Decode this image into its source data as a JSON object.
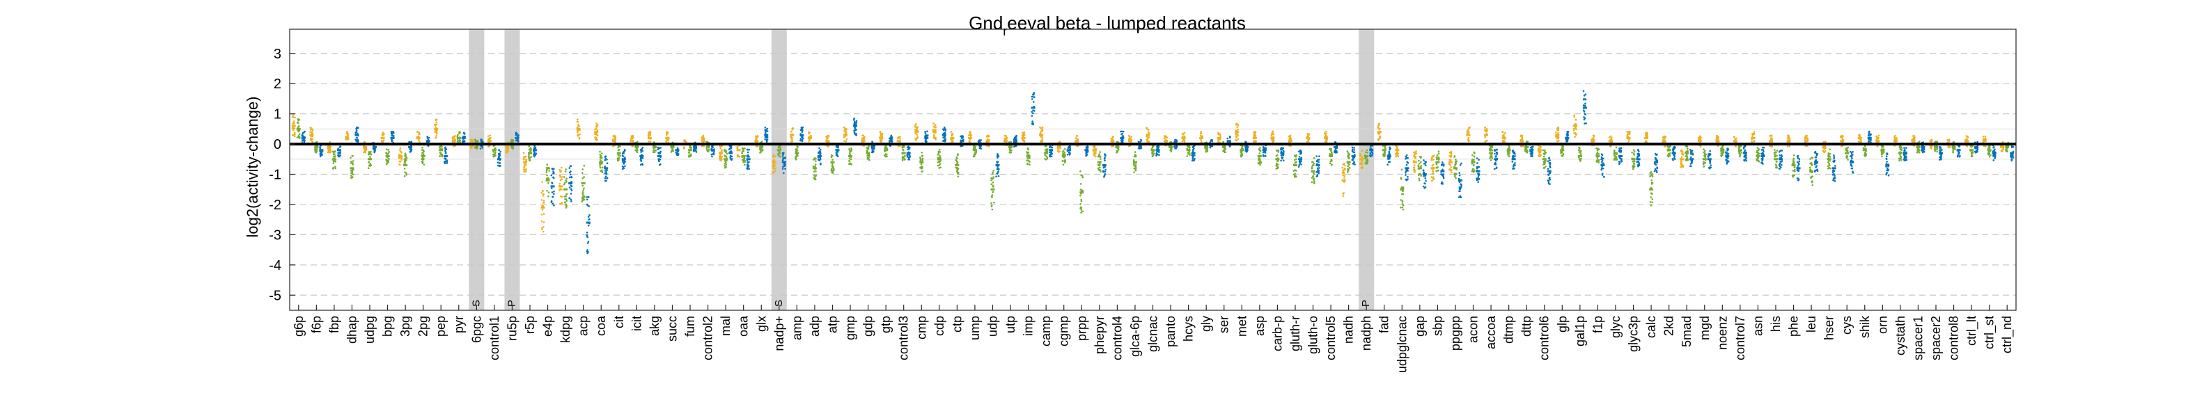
{
  "chart_data": {
    "type": "scatter",
    "title_main": "Gnd",
    "title_sub": "r",
    "title_rest": "eeval beta - lumped reactants",
    "ylabel": "log2(activity-change)",
    "ylim": [
      -5.5,
      3.8
    ],
    "yticks": [
      3,
      2,
      1,
      0,
      -1,
      -2,
      -3,
      -4,
      -5
    ],
    "grid": "dashed horizontal",
    "colors": {
      "orange": "#EDB120",
      "green": "#77AC30",
      "blue": "#0072BD",
      "cyan": "#4DBEEE",
      "highlight": "#d0d0d0",
      "zero_line": "#000000"
    },
    "categories": [
      "g6p",
      "f6p",
      "fbp",
      "dhap",
      "udpg",
      "bpg",
      "3pg",
      "2pg",
      "pep",
      "pyr",
      "6pgc",
      "control1",
      "ru5p",
      "r5p",
      "e4p",
      "kdpg",
      "acp",
      "coa",
      "cit",
      "icit",
      "akg",
      "succ",
      "fum",
      "control2",
      "mal",
      "oaa",
      "glx",
      "nadp+",
      "amp",
      "adp",
      "atp",
      "gmp",
      "gdp",
      "gtp",
      "control3",
      "cmp",
      "cdp",
      "ctp",
      "ump",
      "udp",
      "utp",
      "imp",
      "camp",
      "cgmp",
      "prpp",
      "phepyr",
      "control4",
      "glca-6p",
      "glcnac",
      "panto",
      "hcys",
      "gly",
      "ser",
      "met",
      "asp",
      "carb-p",
      "gluth-r",
      "gluth-o",
      "control5",
      "nadh",
      "nadph",
      "fad",
      "udpglcnac",
      "gap",
      "sbp",
      "ppgpp",
      "acon",
      "accoa",
      "dtmp",
      "dttp",
      "control6",
      "glp",
      "gal1p",
      "f1p",
      "glyc",
      "glyc3p",
      "calc",
      "2kd",
      "5mad",
      "mgd",
      "noenz",
      "control7",
      "asn",
      "his",
      "phe",
      "leu",
      "hser",
      "cys",
      "shik",
      "orn",
      "cystath",
      "spacer1",
      "spacer2",
      "control8",
      "ctrl_lt",
      "ctrl_st",
      "ctrl_nd"
    ],
    "highlights": [
      {
        "category": "6pgc",
        "label": "S"
      },
      {
        "category": "ru5p",
        "label": "P"
      },
      {
        "category": "nadp+",
        "label": "S"
      },
      {
        "category": "nadph",
        "label": "P"
      }
    ],
    "series": [
      {
        "color": "orange",
        "values": [
          0.6,
          0.3,
          -0.1,
          0.2,
          -0.1,
          0.2,
          -0.4,
          0.2,
          0.5,
          0.1,
          0.0,
          0.1,
          -0.1,
          -0.6,
          -2.1,
          -1.4,
          0.5,
          0.4,
          0.1,
          0.1,
          0.2,
          0.2,
          0.0,
          0.1,
          -0.3,
          -0.2,
          0.1,
          -0.6,
          0.3,
          0.2,
          0.1,
          0.3,
          0.1,
          0.2,
          0.1,
          0.4,
          0.4,
          0.2,
          0.2,
          0.1,
          0.1,
          0.2,
          0.3,
          -0.1,
          0.1,
          -0.2,
          0.1,
          0.1,
          0.3,
          0.1,
          0.2,
          0.2,
          0.2,
          0.4,
          0.2,
          0.2,
          0.1,
          0.2,
          0.2,
          -1.2,
          -0.5,
          0.4,
          -0.2,
          -0.6,
          -0.8,
          -0.6,
          0.3,
          0.3,
          0.2,
          0.1,
          -0.2,
          0.3,
          0.6,
          0.1,
          0.1,
          0.2,
          0.2,
          0.1,
          -0.5,
          0.1,
          0.1,
          0.1,
          0.2,
          0.1,
          0.1,
          0.1,
          -0.1,
          0.1,
          0.2,
          0.1,
          0.1,
          0.1,
          0.0,
          0.0,
          0.1,
          0.1,
          -0.1
        ]
      },
      {
        "color": "green",
        "values": [
          0.5,
          -0.1,
          -0.5,
          -0.8,
          -0.5,
          -0.4,
          -0.7,
          -0.4,
          -0.2,
          0.2,
          0.0,
          -0.2,
          0.0,
          -0.3,
          -1.2,
          -1.5,
          -1.3,
          -0.6,
          -0.3,
          -0.1,
          -0.1,
          -0.1,
          -0.2,
          -0.1,
          -0.5,
          -0.4,
          -0.1,
          -0.2,
          -0.3,
          -0.8,
          -0.6,
          -0.4,
          -0.3,
          -0.2,
          -0.3,
          -0.6,
          -0.5,
          -0.7,
          -0.2,
          -1.5,
          -0.1,
          -0.4,
          -0.3,
          -0.4,
          -1.6,
          -0.6,
          -0.1,
          -0.6,
          -0.2,
          -0.1,
          -0.2,
          -0.1,
          -0.1,
          -0.2,
          -0.4,
          -0.5,
          -0.7,
          -0.9,
          -0.4,
          -0.6,
          -0.4,
          -0.2,
          -1.5,
          -0.8,
          -0.6,
          -0.8,
          -0.6,
          -0.3,
          -0.2,
          -0.1,
          -0.5,
          -0.2,
          -0.4,
          -0.4,
          -0.3,
          -0.5,
          -1.5,
          -0.2,
          -0.3,
          -0.5,
          -0.2,
          -0.2,
          -0.4,
          -0.5,
          -0.7,
          -0.9,
          -0.5,
          -0.3,
          -0.2,
          -0.2,
          -0.3,
          -0.1,
          -0.1,
          -0.1,
          -0.2,
          -0.2,
          -0.1
        ]
      },
      {
        "color": "blue",
        "values": [
          0.2,
          -0.2,
          -0.2,
          0.3,
          -0.1,
          0.2,
          -0.1,
          0.1,
          -0.4,
          0.2,
          0.0,
          -0.5,
          0.2,
          -0.2,
          -1.4,
          -1.3,
          -2.6,
          -0.8,
          -0.5,
          -0.4,
          -0.4,
          -0.2,
          -0.1,
          -0.2,
          -0.3,
          -0.5,
          0.3,
          -0.6,
          0.3,
          -0.4,
          -0.2,
          0.6,
          -0.1,
          0.1,
          -0.3,
          0.2,
          0.3,
          0.1,
          0.0,
          -0.7,
          0.1,
          1.2,
          -0.2,
          -0.2,
          -0.2,
          -0.7,
          0.2,
          0.0,
          -0.2,
          0.0,
          -0.3,
          0.0,
          0.1,
          -0.1,
          -0.2,
          -0.3,
          -0.5,
          -0.7,
          -0.1,
          -0.4,
          -0.2,
          -0.4,
          -0.8,
          -1.0,
          -0.9,
          -1.2,
          -0.9,
          -0.5,
          -0.5,
          -0.2,
          -0.9,
          0.2,
          1.2,
          -0.7,
          -0.4,
          -0.5,
          -0.6,
          -0.3,
          -0.5,
          -0.5,
          -0.4,
          -0.3,
          -0.4,
          -0.5,
          -0.8,
          -0.6,
          -0.8,
          -0.6,
          0.2,
          -0.7,
          -0.3,
          -0.1,
          -0.3,
          -0.2,
          -0.1,
          -0.3,
          -0.3
        ]
      }
    ]
  }
}
